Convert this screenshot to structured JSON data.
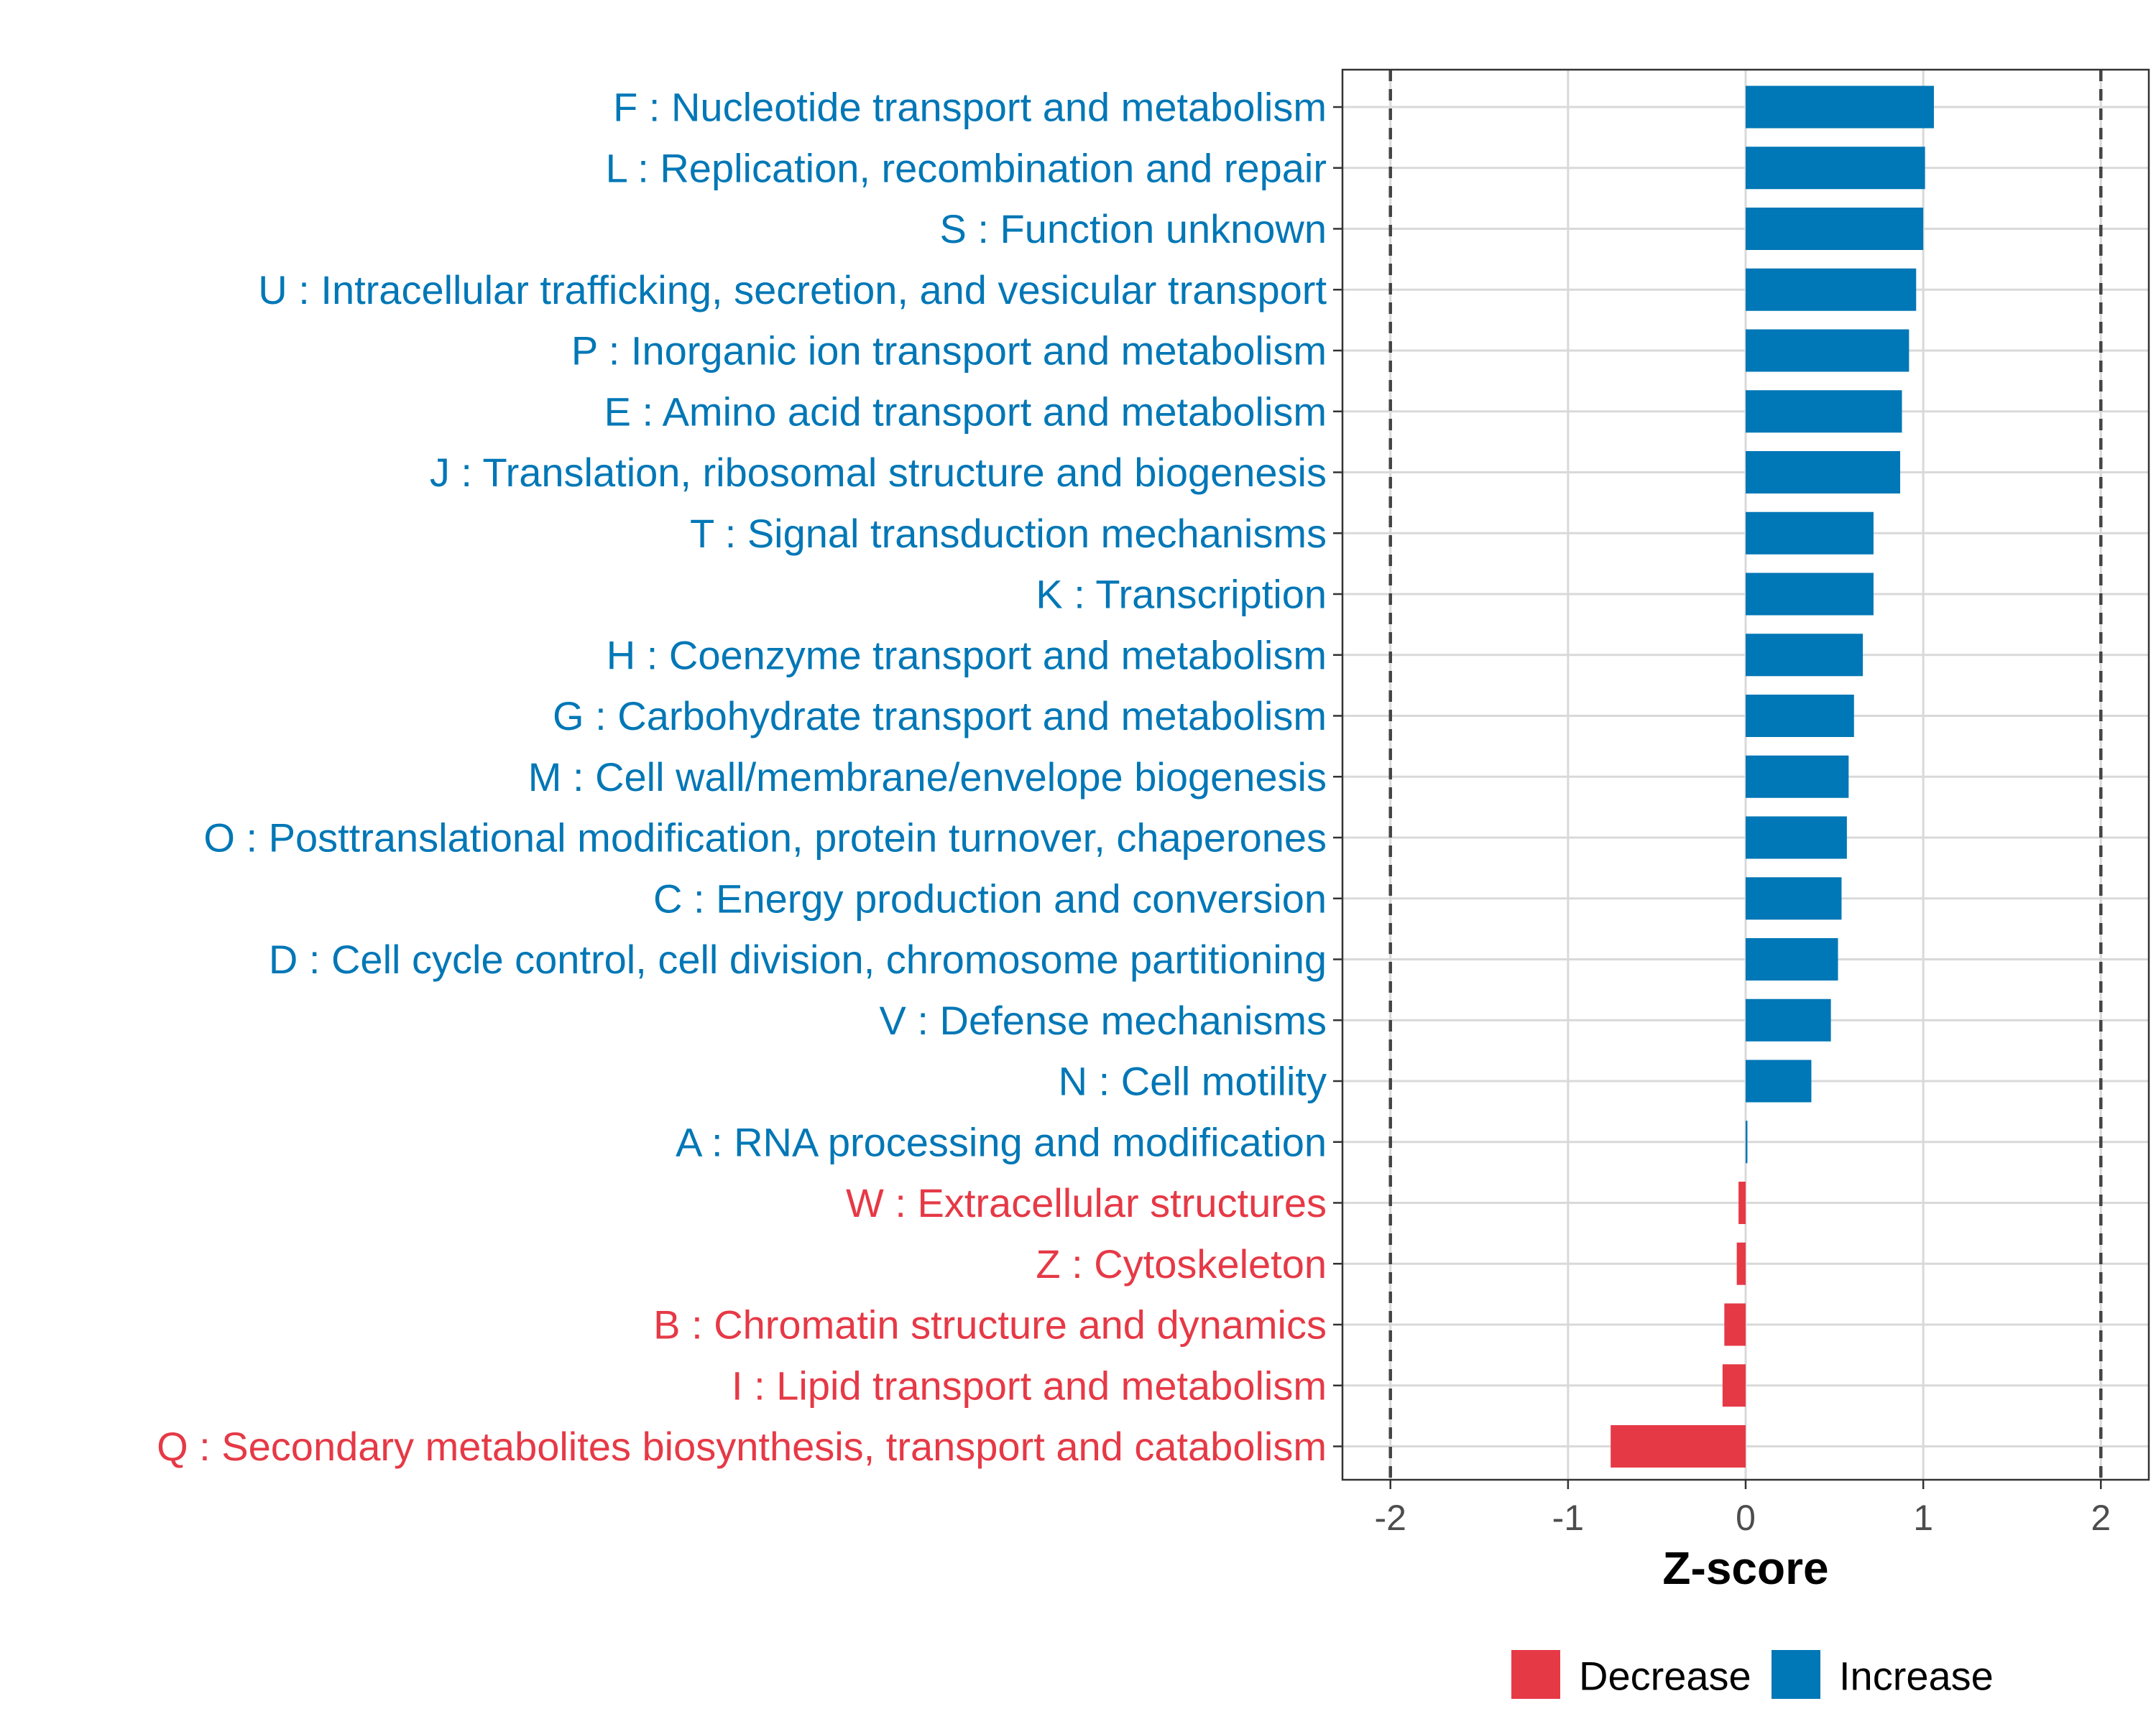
{
  "chart_data": {
    "type": "bar",
    "orientation": "horizontal",
    "title": "",
    "xlabel": "Z-score",
    "ylabel": "",
    "xlim": [
      -2.27,
      2.27
    ],
    "x_ticks": [
      -2,
      -1,
      0,
      1,
      2
    ],
    "x_tick_labels": [
      "-2",
      "-1",
      "0",
      "1",
      "2"
    ],
    "reference_lines": [
      -2,
      2
    ],
    "grid": true,
    "legend_position": "bottom",
    "categories": [
      "F : Nucleotide transport and metabolism",
      "L : Replication, recombination and repair",
      "S : Function unknown",
      "U : Intracellular trafficking, secretion, and vesicular transport",
      "P : Inorganic ion transport and metabolism",
      "E : Amino acid transport and metabolism",
      "J : Translation, ribosomal structure and biogenesis",
      "T : Signal transduction mechanisms",
      "K : Transcription",
      "H : Coenzyme transport and metabolism",
      "G : Carbohydrate transport and metabolism",
      "M : Cell wall/membrane/envelope biogenesis",
      "O : Posttranslational modification, protein turnover, chaperones",
      "C : Energy production and conversion",
      "D : Cell cycle control, cell division, chromosome partitioning",
      "V : Defense mechanisms",
      "N : Cell motility",
      "A : RNA processing and modification",
      "W : Extracellular structures",
      "Z : Cytoskeleton",
      "B : Chromatin structure and dynamics",
      "I : Lipid transport and metabolism",
      "Q : Secondary metabolites biosynthesis, transport and catabolism"
    ],
    "values": [
      1.06,
      1.01,
      1.0,
      0.96,
      0.92,
      0.88,
      0.87,
      0.72,
      0.72,
      0.66,
      0.61,
      0.58,
      0.57,
      0.54,
      0.52,
      0.48,
      0.37,
      0.01,
      -0.04,
      -0.05,
      -0.12,
      -0.13,
      -0.76
    ],
    "groups": [
      "Increase",
      "Increase",
      "Increase",
      "Increase",
      "Increase",
      "Increase",
      "Increase",
      "Increase",
      "Increase",
      "Increase",
      "Increase",
      "Increase",
      "Increase",
      "Increase",
      "Increase",
      "Increase",
      "Increase",
      "Increase",
      "Decrease",
      "Decrease",
      "Decrease",
      "Decrease",
      "Decrease"
    ],
    "legend": [
      {
        "name": "Decrease",
        "color": "#E63946"
      },
      {
        "name": "Increase",
        "color": "#0077B6"
      }
    ]
  }
}
